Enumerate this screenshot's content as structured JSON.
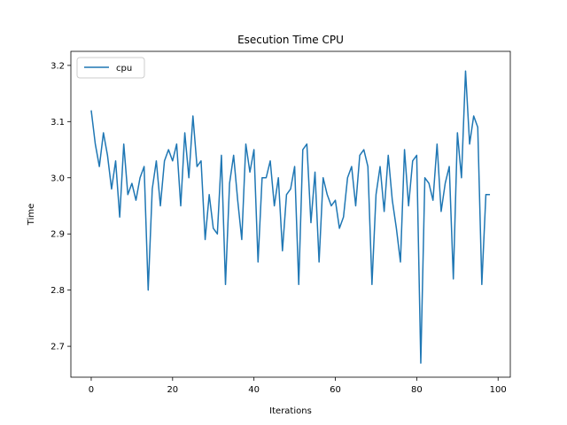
{
  "chart_data": {
    "type": "line",
    "title": "Esecution Time CPU",
    "xlabel": "Iterations",
    "ylabel": "Time",
    "xlim": [
      -5,
      103
    ],
    "ylim": [
      2.645,
      3.225
    ],
    "xticks": [
      0,
      20,
      40,
      60,
      80,
      100
    ],
    "yticks": [
      2.7,
      2.8,
      2.9,
      3.0,
      3.1,
      3.2
    ],
    "xtick_labels": [
      "0",
      "20",
      "40",
      "60",
      "80",
      "100"
    ],
    "ytick_labels": [
      "2.7",
      "2.8",
      "2.9",
      "3.0",
      "3.1",
      "3.2"
    ],
    "grid": false,
    "legend_position": "top-left",
    "series": [
      {
        "name": "cpu",
        "color": "#1f77b4",
        "x": [
          0,
          1,
          2,
          3,
          4,
          5,
          6,
          7,
          8,
          9,
          10,
          11,
          12,
          13,
          14,
          15,
          16,
          17,
          18,
          19,
          20,
          21,
          22,
          23,
          24,
          25,
          26,
          27,
          28,
          29,
          30,
          31,
          32,
          33,
          34,
          35,
          36,
          37,
          38,
          39,
          40,
          41,
          42,
          43,
          44,
          45,
          46,
          47,
          48,
          49,
          50,
          51,
          52,
          53,
          54,
          55,
          56,
          57,
          58,
          59,
          60,
          61,
          62,
          63,
          64,
          65,
          66,
          67,
          68,
          69,
          70,
          71,
          72,
          73,
          74,
          75,
          76,
          77,
          78,
          79,
          80,
          81,
          82,
          83,
          84,
          85,
          86,
          87,
          88,
          89,
          90,
          91,
          92,
          93,
          94,
          95,
          96,
          97,
          98
        ],
        "y": [
          3.12,
          3.06,
          3.02,
          3.08,
          3.04,
          2.98,
          3.03,
          2.93,
          3.06,
          2.97,
          2.99,
          2.96,
          3.0,
          3.02,
          2.8,
          2.98,
          3.03,
          2.95,
          3.03,
          3.05,
          3.03,
          3.06,
          2.95,
          3.08,
          3.0,
          3.11,
          3.02,
          3.03,
          2.89,
          2.97,
          2.91,
          2.9,
          3.04,
          2.81,
          2.99,
          3.04,
          2.96,
          2.89,
          3.06,
          3.01,
          3.05,
          2.85,
          3.0,
          3.0,
          3.03,
          2.95,
          3.0,
          2.87,
          2.97,
          2.98,
          3.02,
          2.81,
          3.05,
          3.06,
          2.92,
          3.01,
          2.85,
          3.0,
          2.97,
          2.95,
          2.96,
          2.91,
          2.93,
          3.0,
          3.02,
          2.95,
          3.04,
          3.05,
          3.02,
          2.81,
          2.97,
          3.02,
          2.94,
          3.04,
          2.96,
          2.91,
          2.85,
          3.05,
          2.95,
          3.03,
          3.04,
          2.67,
          3.0,
          2.99,
          2.96,
          3.06,
          2.94,
          2.99,
          3.02,
          2.82,
          3.08,
          3.0,
          3.19,
          3.06,
          3.11,
          3.09,
          2.81,
          2.97,
          2.97
        ]
      }
    ]
  }
}
